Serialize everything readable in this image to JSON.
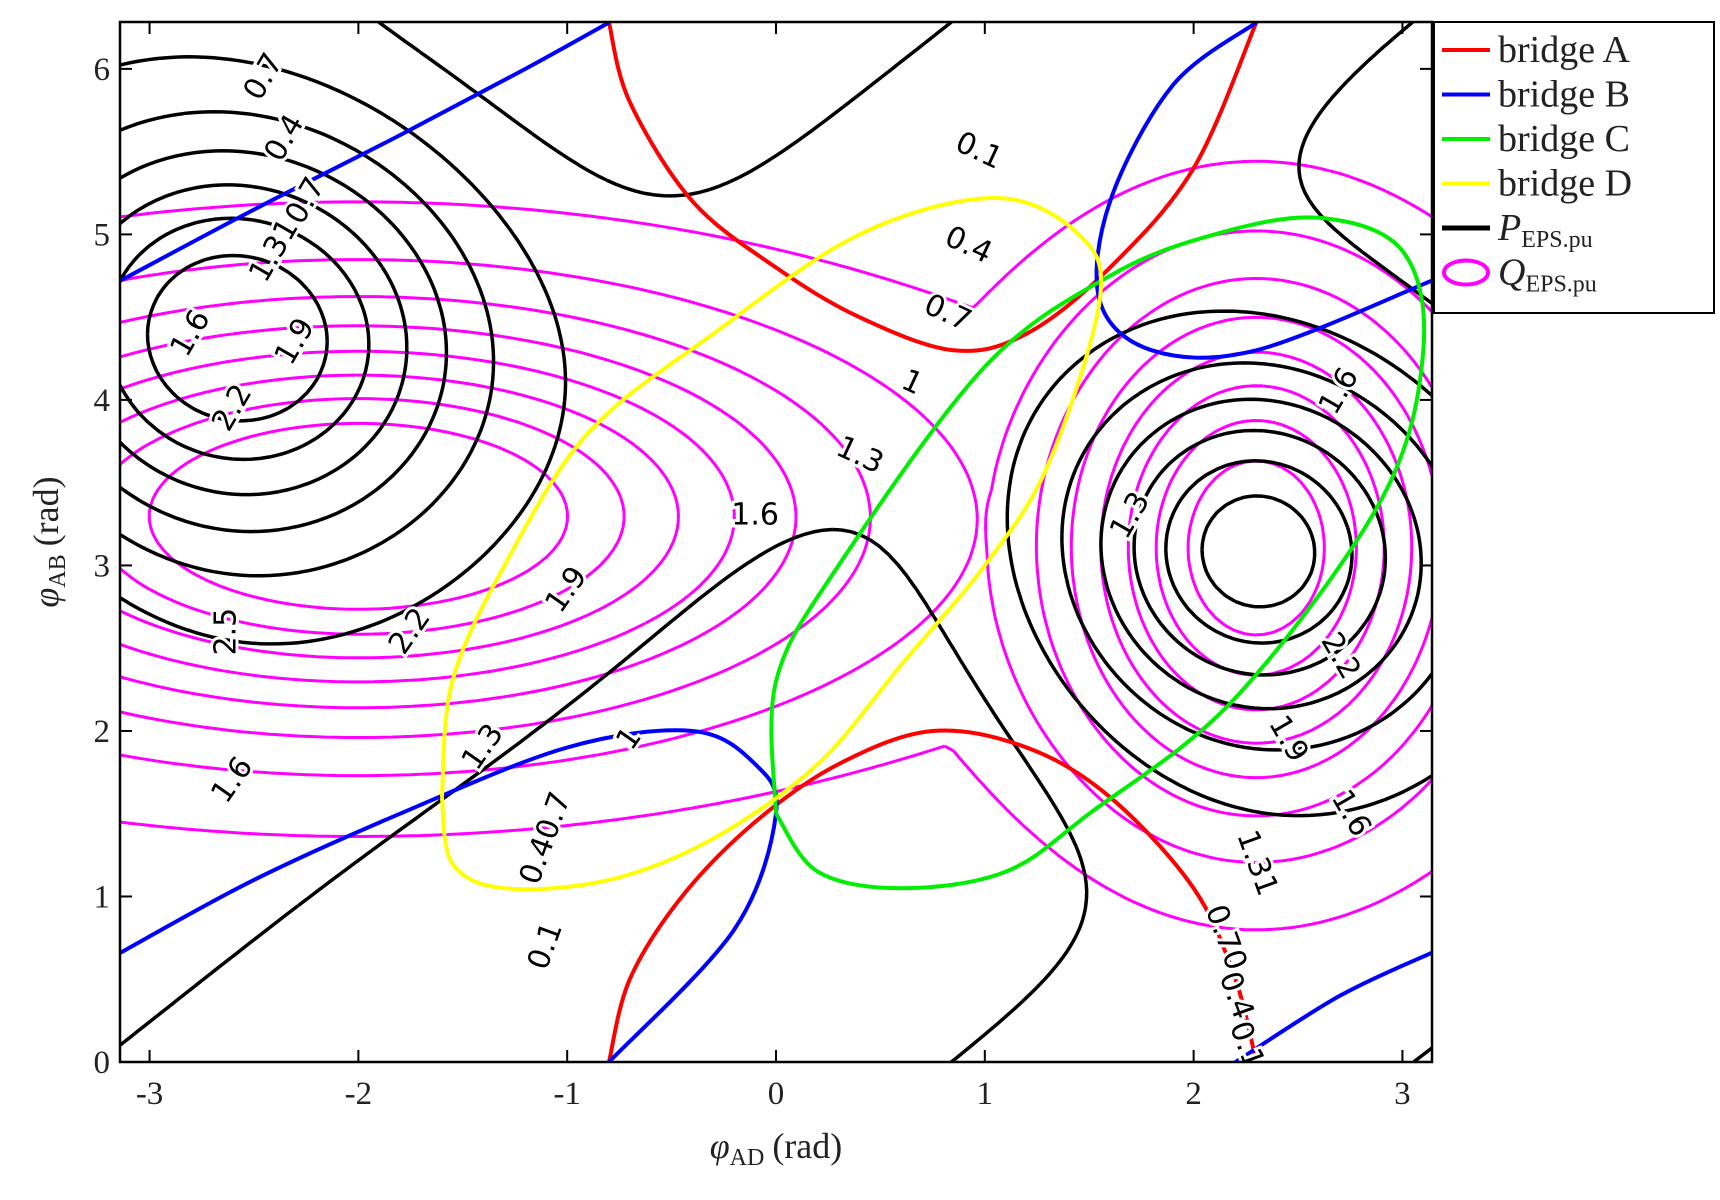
{
  "chart_data": {
    "type": "contour",
    "xlabel": {
      "symbol": "φ",
      "subscript": "AD",
      "unit": "(rad)"
    },
    "ylabel": {
      "symbol": "φ",
      "subscript": "AB",
      "unit": "(rad)"
    },
    "xlim": [
      -3.1416,
      3.1416
    ],
    "ylim": [
      0,
      6.2832
    ],
    "xticks": [
      -3,
      -2,
      -1,
      0,
      1,
      2,
      3
    ],
    "xtick_labels": [
      "-3",
      "-2",
      "-1",
      "0",
      "1",
      "2",
      "3"
    ],
    "yticks": [
      0,
      1,
      2,
      3,
      4,
      5,
      6
    ],
    "ytick_labels": [
      "0",
      "1",
      "2",
      "3",
      "4",
      "5",
      "6"
    ],
    "legend": {
      "position": "top-right-outside",
      "entries": [
        {
          "label": "bridge A",
          "color": "#ff0000",
          "style": "line"
        },
        {
          "label": "bridge B",
          "color": "#0000ff",
          "style": "line"
        },
        {
          "label": "bridge C",
          "color": "#00ee00",
          "style": "line"
        },
        {
          "label": "bridge D",
          "color": "#ffff00",
          "style": "line"
        },
        {
          "label": "P",
          "subscript": "EPS.pu",
          "color": "#000000",
          "style": "line"
        },
        {
          "label": "Q",
          "subscript": "EPS.pu",
          "color": "#ff00ff",
          "style": "ellipse"
        }
      ]
    },
    "boundaries": [
      {
        "name": "bridge A",
        "color": "#ff0000",
        "curves": [
          [
            [
              -0.8,
              6.28
            ],
            [
              -0.7,
              5.8
            ],
            [
              -0.4,
              5.2
            ],
            [
              0,
              4.8
            ],
            [
              0.4,
              4.5
            ],
            [
              0.85,
              4.3
            ],
            [
              1.2,
              4.4
            ],
            [
              1.6,
              4.8
            ],
            [
              2,
              5.4
            ],
            [
              2.3,
              6.28
            ]
          ],
          [
            [
              -0.8,
              0
            ],
            [
              -0.7,
              0.5
            ],
            [
              -0.45,
              1.0
            ],
            [
              -0.1,
              1.45
            ],
            [
              0.3,
              1.8
            ],
            [
              0.75,
              2.0
            ],
            [
              1.2,
              1.9
            ],
            [
              1.6,
              1.6
            ],
            [
              2,
              1.05
            ],
            [
              2.2,
              0.5
            ],
            [
              2.3,
              0
            ]
          ]
        ]
      },
      {
        "name": "bridge B",
        "color": "#0000ff",
        "curves": [
          [
            [
              -3.14,
              4.72
            ],
            [
              -2.5,
              5.15
            ],
            [
              -1.8,
              5.6
            ],
            [
              -1.2,
              6.0
            ],
            [
              -0.8,
              6.28
            ]
          ],
          [
            [
              -3.14,
              0.66
            ],
            [
              -2.5,
              1.1
            ],
            [
              -1.8,
              1.5
            ],
            [
              -1.0,
              1.9
            ],
            [
              -0.4,
              2.0
            ],
            [
              -0.1,
              1.8
            ],
            [
              0,
              1.5
            ],
            [
              -0.2,
              0.8
            ],
            [
              -0.8,
              0
            ]
          ],
          [
            [
              2.3,
              6.28
            ],
            [
              1.9,
              5.9
            ],
            [
              1.6,
              5.2
            ],
            [
              1.55,
              4.6
            ],
            [
              1.8,
              4.3
            ],
            [
              2.3,
              4.3
            ],
            [
              3.14,
              4.72
            ]
          ],
          [
            [
              2.2,
              0
            ],
            [
              2.7,
              0.4
            ],
            [
              3.14,
              0.66
            ]
          ]
        ]
      },
      {
        "name": "bridge C",
        "color": "#00ee00",
        "curves": [
          [
            [
              0,
              1.5
            ],
            [
              0.2,
              1.15
            ],
            [
              0.6,
              1.05
            ],
            [
              1.1,
              1.15
            ],
            [
              1.5,
              1.5
            ],
            [
              2.2,
              2.2
            ],
            [
              2.9,
              3.4
            ],
            [
              3.1,
              4.3
            ],
            [
              3.0,
              4.9
            ],
            [
              2.6,
              5.1
            ],
            [
              2.1,
              5.0
            ],
            [
              1.6,
              4.75
            ],
            [
              1.0,
              4.2
            ],
            [
              0.3,
              3.0
            ],
            [
              0,
              2.3
            ],
            [
              0,
              1.5
            ]
          ]
        ]
      },
      {
        "name": "bridge D",
        "color": "#ffff00",
        "curves": [
          [
            [
              -1.6,
              1.6
            ],
            [
              -1.55,
              1.2
            ],
            [
              -1.3,
              1.05
            ],
            [
              -0.8,
              1.1
            ],
            [
              -0.3,
              1.35
            ],
            [
              0.2,
              1.8
            ],
            [
              0.6,
              2.4
            ],
            [
              1.0,
              3.0
            ],
            [
              1.3,
              3.6
            ],
            [
              1.55,
              4.6
            ],
            [
              1.45,
              5.0
            ],
            [
              1.05,
              5.22
            ],
            [
              0.4,
              5.0
            ],
            [
              -0.3,
              4.4
            ],
            [
              -0.9,
              3.8
            ],
            [
              -1.3,
              3.0
            ],
            [
              -1.55,
              2.3
            ],
            [
              -1.6,
              1.6
            ]
          ]
        ]
      }
    ],
    "series": [
      {
        "name": "P_EPS.pu",
        "color": "#000000",
        "kind": "P"
      },
      {
        "name": "Q_EPS.pu",
        "color": "#ff00ff",
        "kind": "Q"
      }
    ],
    "contour_labels": [
      {
        "text": "0.1",
        "x": 0.97,
        "y": 5.5,
        "color": "#000000",
        "angle": 25
      },
      {
        "text": "0.4",
        "x": 0.92,
        "y": 4.93,
        "color": "#000000",
        "angle": 25
      },
      {
        "text": "0.7",
        "x": 0.82,
        "y": 4.52,
        "color": "#000000",
        "angle": 25
      },
      {
        "text": "1",
        "x": 0.65,
        "y": 4.1,
        "color": "#000000",
        "angle": 25
      },
      {
        "text": "1.3",
        "x": 0.4,
        "y": 3.66,
        "color": "#000000",
        "angle": 25
      },
      {
        "text": "1.6",
        "x": -0.1,
        "y": 3.3,
        "color": "#000000",
        "angle": 0
      },
      {
        "text": "1.9",
        "x": -1.0,
        "y": 2.85,
        "color": "#000000",
        "angle": -55
      },
      {
        "text": "2.2",
        "x": -1.75,
        "y": 2.6,
        "color": "#000000",
        "angle": -55
      },
      {
        "text": "2.5",
        "x": -2.63,
        "y": 2.6,
        "color": "#000000",
        "angle": -90
      },
      {
        "text": "1.6",
        "x": -2.6,
        "y": 1.7,
        "color": "#000000",
        "angle": -55
      },
      {
        "text": "1.3",
        "x": -1.4,
        "y": 1.9,
        "color": "#000000",
        "angle": -55
      },
      {
        "text": "0.40.7",
        "x": -1.1,
        "y": 1.35,
        "color": "#000000",
        "angle": -70
      },
      {
        "text": "1",
        "x": -0.7,
        "y": 1.95,
        "color": "#000000",
        "angle": -55
      },
      {
        "text": "0.1",
        "x": -1.1,
        "y": 0.7,
        "color": "#000000",
        "angle": -70
      },
      {
        "text": "1.6",
        "x": -2.8,
        "y": 4.4,
        "color": "#000000",
        "angle": -60
      },
      {
        "text": "2.2",
        "x": -2.6,
        "y": 3.95,
        "color": "#000000",
        "angle": -60
      },
      {
        "text": "1.9",
        "x": -2.3,
        "y": 4.35,
        "color": "#000000",
        "angle": -60
      },
      {
        "text": "1.31",
        "x": -2.4,
        "y": 4.9,
        "color": "#000000",
        "angle": -60
      },
      {
        "text": "0.7",
        "x": -2.25,
        "y": 5.2,
        "color": "#000000",
        "angle": -60
      },
      {
        "text": "0.4",
        "x": -2.35,
        "y": 5.58,
        "color": "#000000",
        "angle": -60
      },
      {
        "text": "0.7",
        "x": -2.45,
        "y": 5.95,
        "color": "#000000",
        "angle": -60
      },
      {
        "text": "1.3",
        "x": 1.7,
        "y": 3.3,
        "color": "#000000",
        "angle": -60
      },
      {
        "text": "1.6",
        "x": 2.7,
        "y": 4.05,
        "color": "#000000",
        "angle": -60
      },
      {
        "text": "2.2",
        "x": 2.7,
        "y": 2.45,
        "color": "#000000",
        "angle": 60
      },
      {
        "text": "1.9",
        "x": 2.45,
        "y": 1.95,
        "color": "#000000",
        "angle": 60
      },
      {
        "text": "1.6",
        "x": 2.75,
        "y": 1.5,
        "color": "#000000",
        "angle": 60
      },
      {
        "text": "1.31",
        "x": 2.3,
        "y": 1.2,
        "color": "#000000",
        "angle": 70
      },
      {
        "text": "0.70",
        "x": 2.15,
        "y": 0.75,
        "color": "#000000",
        "angle": 70
      },
      {
        "text": "0.4",
        "x": 2.2,
        "y": 0.4,
        "color": "#000000",
        "angle": 70
      },
      {
        "text": "0.1",
        "x": 2.25,
        "y": 0.1,
        "color": "#000000",
        "angle": 70
      }
    ]
  }
}
